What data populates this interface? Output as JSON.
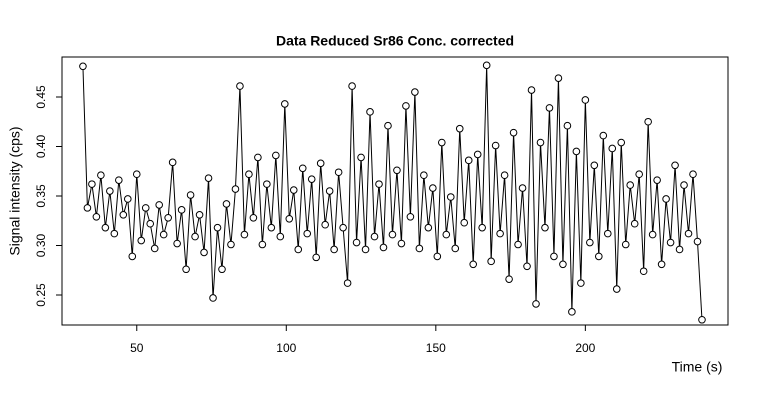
{
  "chart_data": {
    "type": "line",
    "title": "Data Reduced Sr86 Conc. corrected",
    "x_label": "Time (s)",
    "y_label": "Signal intensity (cps)",
    "markers": true,
    "color": "#000000",
    "xlim": [
      25,
      247.7
    ],
    "ylim": [
      0.2197,
      0.4904
    ],
    "xticks": [
      50,
      100,
      150,
      200
    ],
    "yticks": [
      0.25,
      {
        "value": 0.3,
        "label": "0.30"
      },
      0.35,
      {
        "value": 0.4,
        "label": "0.40"
      },
      0.45
    ],
    "x": [
      32,
      33.5,
      35,
      36.5,
      38,
      39.5,
      41,
      42.5,
      44,
      45.5,
      47,
      48.5,
      50,
      51.5,
      53,
      54.5,
      56,
      57.5,
      59,
      60.5,
      62,
      63.5,
      65,
      66.5,
      68,
      69.5,
      71,
      72.5,
      74,
      75.5,
      77,
      78.5,
      80,
      81.5,
      83,
      84.5,
      86,
      87.5,
      89,
      90.5,
      92,
      93.5,
      95,
      96.5,
      98,
      99.5,
      101,
      102.5,
      104,
      105.5,
      107,
      108.5,
      110,
      111.5,
      113,
      114.5,
      116,
      117.5,
      119,
      120.5,
      122,
      123.5,
      125,
      126.5,
      128,
      129.5,
      131,
      132.5,
      134,
      135.5,
      137,
      138.5,
      140,
      141.5,
      143,
      144.5,
      146,
      147.5,
      149,
      150.5,
      152,
      153.5,
      155,
      156.5,
      158,
      159.5,
      161,
      162.5,
      164,
      165.5,
      167,
      168.5,
      170,
      171.5,
      173,
      174.5,
      176,
      177.5,
      179,
      180.5,
      182,
      183.5,
      185,
      186.5,
      188,
      189.5,
      191,
      192.5,
      194,
      195.5,
      197,
      198.5,
      200,
      201.5,
      203,
      204.5,
      206,
      207.5,
      209,
      210.5,
      212,
      213.5,
      215,
      216.5,
      218,
      219.5,
      221,
      222.5,
      224,
      225.5,
      227,
      228.5,
      230,
      231.5,
      233,
      234.5,
      236,
      237.5,
      239
    ],
    "values": [
      0.481,
      0.338,
      0.362,
      0.329,
      0.371,
      0.318,
      0.355,
      0.312,
      0.366,
      0.331,
      0.347,
      0.289,
      0.372,
      0.305,
      0.338,
      0.322,
      0.297,
      0.341,
      0.311,
      0.328,
      0.384,
      0.302,
      0.336,
      0.276,
      0.351,
      0.309,
      0.331,
      0.293,
      0.368,
      0.247,
      0.318,
      0.276,
      0.342,
      0.301,
      0.357,
      0.461,
      0.311,
      0.372,
      0.328,
      0.389,
      0.301,
      0.362,
      0.318,
      0.391,
      0.309,
      0.443,
      0.327,
      0.356,
      0.296,
      0.378,
      0.312,
      0.367,
      0.288,
      0.383,
      0.321,
      0.355,
      0.296,
      0.374,
      0.318,
      0.262,
      0.461,
      0.303,
      0.389,
      0.296,
      0.435,
      0.309,
      0.362,
      0.298,
      0.421,
      0.311,
      0.376,
      0.302,
      0.441,
      0.329,
      0.455,
      0.297,
      0.371,
      0.318,
      0.358,
      0.289,
      0.404,
      0.311,
      0.349,
      0.297,
      0.418,
      0.323,
      0.386,
      0.281,
      0.392,
      0.318,
      0.482,
      0.284,
      0.401,
      0.312,
      0.371,
      0.266,
      0.414,
      0.301,
      0.358,
      0.279,
      0.457,
      0.241,
      0.404,
      0.318,
      0.439,
      0.289,
      0.469,
      0.281,
      0.421,
      0.233,
      0.395,
      0.262,
      0.447,
      0.303,
      0.381,
      0.289,
      0.411,
      0.312,
      0.398,
      0.256,
      0.404,
      0.301,
      0.361,
      0.322,
      0.372,
      0.274,
      0.425,
      0.311,
      0.366,
      0.281,
      0.347,
      0.303,
      0.381,
      0.296,
      0.361,
      0.312,
      0.372,
      0.304,
      0.225
    ]
  }
}
